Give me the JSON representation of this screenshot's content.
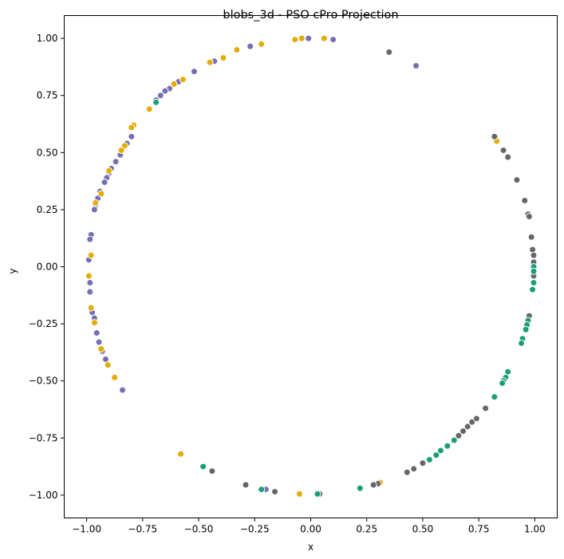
{
  "chart_data": {
    "type": "scatter",
    "title": "blobs_3d - PSO cPro Projection",
    "xlabel": "x",
    "ylabel": "y",
    "xlim": [
      -1.1,
      1.1
    ],
    "ylim": [
      -1.1,
      1.1
    ],
    "xticks": [
      -1.0,
      -0.75,
      -0.5,
      -0.25,
      0.0,
      0.25,
      0.5,
      0.75,
      1.0
    ],
    "yticks": [
      -1.0,
      -0.75,
      -0.5,
      -0.25,
      0.0,
      0.25,
      0.5,
      0.75,
      1.0
    ],
    "xtick_labels": [
      "−1.00",
      "−0.75",
      "−0.50",
      "−0.25",
      "0.00",
      "0.25",
      "0.50",
      "0.75",
      "1.00"
    ],
    "ytick_labels": [
      "−1.00",
      "−0.75",
      "−0.50",
      "−0.25",
      "0.00",
      "0.25",
      "0.50",
      "0.75",
      "1.00"
    ],
    "grid": false,
    "legend": "none",
    "series": [
      {
        "color": "#7570b3",
        "points": [
          [
            -0.01,
            1.0
          ],
          [
            0.1,
            0.995
          ],
          [
            0.47,
            0.88
          ],
          [
            -0.27,
            0.965
          ],
          [
            -0.43,
            0.9
          ],
          [
            -0.52,
            0.855
          ],
          [
            -0.59,
            0.81
          ],
          [
            -0.63,
            0.78
          ],
          [
            -0.65,
            0.77
          ],
          [
            -0.67,
            0.75
          ],
          [
            -0.69,
            0.73
          ],
          [
            -0.8,
            0.57
          ],
          [
            -0.82,
            0.54
          ],
          [
            -0.85,
            0.49
          ],
          [
            -0.87,
            0.46
          ],
          [
            -0.89,
            0.43
          ],
          [
            -0.9,
            0.41
          ],
          [
            -0.91,
            0.39
          ],
          [
            -0.92,
            0.37
          ],
          [
            -0.94,
            0.33
          ],
          [
            -0.95,
            0.3
          ],
          [
            -0.96,
            0.27
          ],
          [
            -0.965,
            0.25
          ],
          [
            -0.98,
            0.14
          ],
          [
            -0.985,
            0.12
          ],
          [
            -0.99,
            0.03
          ],
          [
            -0.985,
            -0.07
          ],
          [
            -0.985,
            -0.11
          ],
          [
            -0.975,
            -0.2
          ],
          [
            -0.965,
            -0.225
          ],
          [
            -0.955,
            -0.29
          ],
          [
            -0.945,
            -0.33
          ],
          [
            -0.93,
            -0.37
          ],
          [
            -0.915,
            -0.405
          ],
          [
            -0.84,
            -0.54
          ],
          [
            -0.2,
            -0.975
          ]
        ]
      },
      {
        "color": "#e6ab02",
        "points": [
          [
            -0.04,
            1.0
          ],
          [
            0.06,
            1.0
          ],
          [
            -0.07,
            0.995
          ],
          [
            -0.22,
            0.975
          ],
          [
            -0.33,
            0.95
          ],
          [
            -0.39,
            0.915
          ],
          [
            -0.45,
            0.895
          ],
          [
            -0.57,
            0.82
          ],
          [
            -0.61,
            0.8
          ],
          [
            -0.72,
            0.69
          ],
          [
            -0.79,
            0.62
          ],
          [
            -0.8,
            0.61
          ],
          [
            -0.83,
            0.53
          ],
          [
            -0.845,
            0.51
          ],
          [
            -0.9,
            0.42
          ],
          [
            -0.935,
            0.32
          ],
          [
            -0.96,
            0.28
          ],
          [
            -0.98,
            0.05
          ],
          [
            -0.99,
            -0.04
          ],
          [
            -0.98,
            -0.18
          ],
          [
            -0.965,
            -0.245
          ],
          [
            -0.935,
            -0.36
          ],
          [
            -0.905,
            -0.43
          ],
          [
            -0.875,
            -0.485
          ],
          [
            0.83,
            0.55
          ],
          [
            -0.58,
            -0.82
          ],
          [
            -0.05,
            -0.995
          ],
          [
            0.31,
            -0.945
          ]
        ]
      },
      {
        "color": "#666666",
        "points": [
          [
            0.35,
            0.94
          ],
          [
            0.82,
            0.57
          ],
          [
            0.86,
            0.51
          ],
          [
            0.88,
            0.48
          ],
          [
            0.92,
            0.38
          ],
          [
            0.955,
            0.29
          ],
          [
            0.97,
            0.23
          ],
          [
            0.975,
            0.22
          ],
          [
            0.985,
            0.13
          ],
          [
            0.99,
            0.075
          ],
          [
            0.995,
            0.05
          ],
          [
            0.995,
            0.02
          ],
          [
            0.995,
            -0.04
          ],
          [
            0.975,
            -0.215
          ],
          [
            0.7,
            -0.7
          ],
          [
            0.68,
            -0.72
          ],
          [
            0.66,
            -0.74
          ],
          [
            0.72,
            -0.68
          ],
          [
            0.74,
            -0.665
          ],
          [
            0.78,
            -0.62
          ],
          [
            0.5,
            -0.86
          ],
          [
            0.46,
            -0.885
          ],
          [
            0.43,
            -0.9
          ],
          [
            0.3,
            -0.95
          ],
          [
            0.28,
            -0.955
          ],
          [
            0.04,
            -0.995
          ],
          [
            -0.16,
            -0.985
          ],
          [
            -0.29,
            -0.955
          ],
          [
            -0.44,
            -0.895
          ]
        ]
      },
      {
        "color": "#1b9e77",
        "points": [
          [
            -0.69,
            0.72
          ],
          [
            0.995,
            0.0
          ],
          [
            0.995,
            -0.02
          ],
          [
            0.995,
            -0.07
          ],
          [
            0.99,
            -0.1
          ],
          [
            0.97,
            -0.235
          ],
          [
            0.965,
            -0.255
          ],
          [
            0.96,
            -0.275
          ],
          [
            0.945,
            -0.315
          ],
          [
            0.94,
            -0.335
          ],
          [
            0.88,
            -0.46
          ],
          [
            0.87,
            -0.485
          ],
          [
            0.86,
            -0.5
          ],
          [
            0.855,
            -0.51
          ],
          [
            0.82,
            -0.57
          ],
          [
            0.64,
            -0.76
          ],
          [
            0.61,
            -0.785
          ],
          [
            0.58,
            -0.805
          ],
          [
            0.56,
            -0.825
          ],
          [
            0.53,
            -0.845
          ],
          [
            0.22,
            -0.97
          ],
          [
            0.03,
            -0.995
          ],
          [
            -0.22,
            -0.975
          ],
          [
            -0.48,
            -0.875
          ]
        ]
      }
    ]
  }
}
